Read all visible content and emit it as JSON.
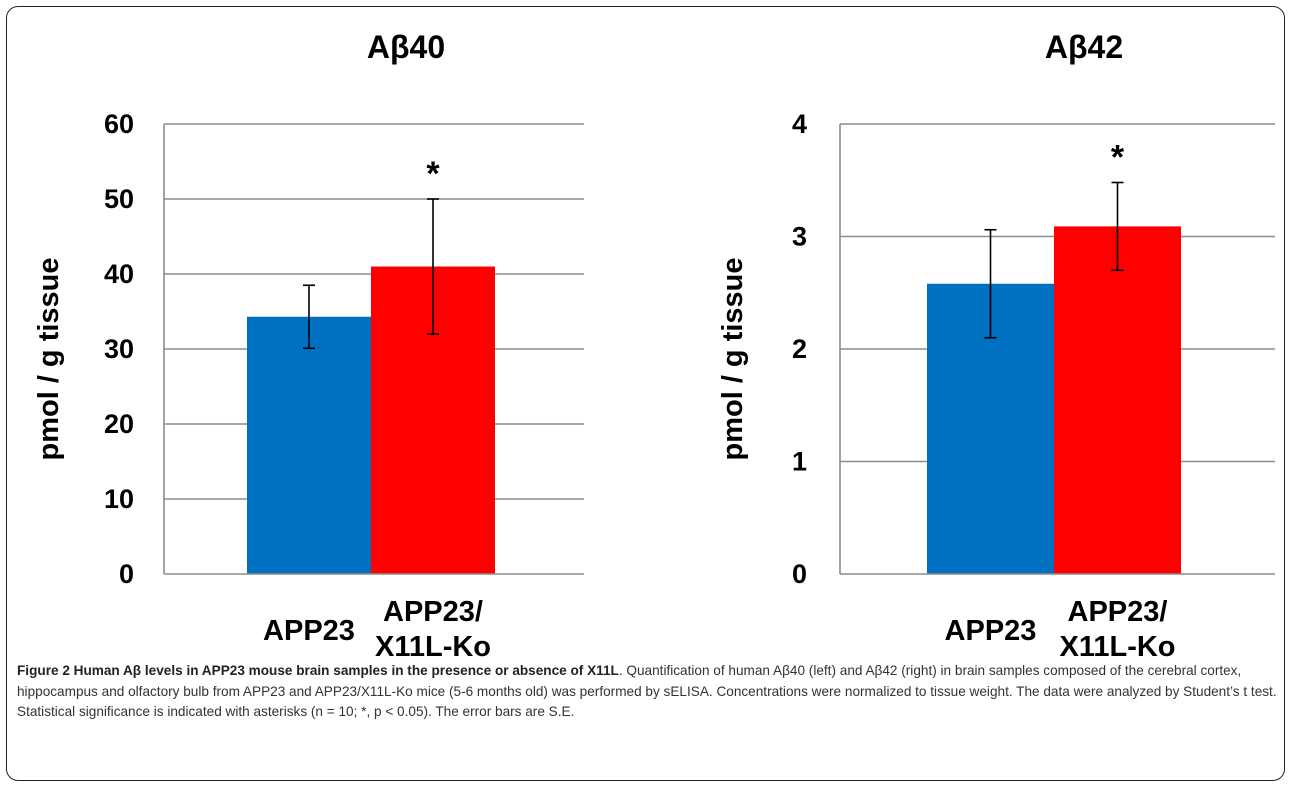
{
  "chart_data": [
    {
      "type": "bar",
      "title": "Aβ40",
      "ylabel": "pmol / g tissue",
      "categories": [
        "APP23",
        "APP23/ X11L-Ko"
      ],
      "category_lines": [
        [
          "APP23"
        ],
        [
          "APP23/",
          "X11L-Ko"
        ]
      ],
      "values": [
        34.3,
        41.0
      ],
      "errors": [
        4.2,
        9.0
      ],
      "annotations": [
        "",
        "*"
      ],
      "ylim": [
        0,
        60
      ],
      "yticks": [
        0,
        10,
        20,
        30,
        40,
        50,
        60
      ],
      "grid": true,
      "colors": [
        "#0070c0",
        "#ff0000"
      ]
    },
    {
      "type": "bar",
      "title": "Aβ42",
      "ylabel": "pmol / g tissue",
      "categories": [
        "APP23",
        "APP23/ X11L-Ko"
      ],
      "category_lines": [
        [
          "APP23"
        ],
        [
          "APP23/",
          "X11L-Ko"
        ]
      ],
      "values": [
        2.58,
        3.09
      ],
      "errors": [
        0.48,
        0.39
      ],
      "annotations": [
        "",
        "*"
      ],
      "ylim": [
        0,
        4
      ],
      "yticks": [
        0,
        1,
        2,
        3,
        4
      ],
      "grid": true,
      "colors": [
        "#0070c0",
        "#ff0000"
      ]
    }
  ],
  "caption": {
    "bold": "Figure 2 Human Aβ levels in APP23 mouse brain samples in the presence or absence of X11L",
    "text": ". Quantification of human Aβ40 (left) and Aβ42 (right) in brain samples composed of the cerebral cortex, hippocampus and olfactory bulb from APP23 and APP23/X11L-Ko mice (5-6 months old) was performed by sELISA. Concentrations were normalized to tissue weight. The data were analyzed by Student’s t test. Statistical significance is indicated with asterisks (n = 10; *, p < 0.05). The error bars are S.E."
  }
}
